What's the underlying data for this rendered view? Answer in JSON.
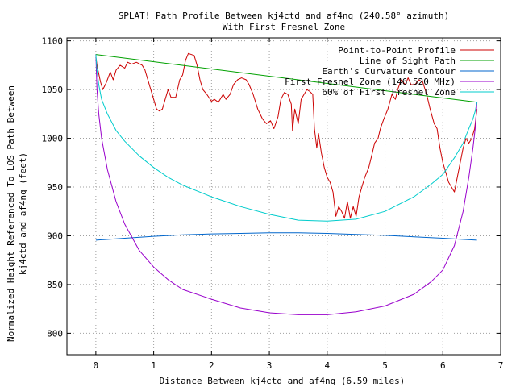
{
  "chart_data": {
    "type": "line",
    "title": "SPLAT! Path Profile Between kj4ctd and af4nq (240.58° azimuth)",
    "subtitle": "With First Fresnel Zone",
    "xlabel": "Distance Between kj4ctd and af4nq (6.59 miles)",
    "ylabel_line1": "Normalized Height Referenced To LOS Path Between",
    "ylabel_line2": "kj4ctd and af4nq (feet)",
    "xlim": [
      -0.5,
      7
    ],
    "ylim": [
      778,
      1103
    ],
    "x_ticks": [
      0,
      1,
      2,
      3,
      4,
      5,
      6,
      7
    ],
    "y_ticks": [
      800,
      850,
      900,
      950,
      1000,
      1050,
      1100
    ],
    "grid": true,
    "legend_position": "top-right",
    "series": [
      {
        "name": "Point-to-Point Profile",
        "color": "#cc0000",
        "points": [
          [
            0,
            1083
          ],
          [
            0.03,
            1072
          ],
          [
            0.08,
            1058
          ],
          [
            0.12,
            1050
          ],
          [
            0.18,
            1057
          ],
          [
            0.25,
            1068
          ],
          [
            0.3,
            1060
          ],
          [
            0.35,
            1070
          ],
          [
            0.42,
            1075
          ],
          [
            0.5,
            1072
          ],
          [
            0.55,
            1078
          ],
          [
            0.62,
            1076
          ],
          [
            0.7,
            1078
          ],
          [
            0.8,
            1075
          ],
          [
            0.85,
            1070
          ],
          [
            0.9,
            1060
          ],
          [
            0.95,
            1050
          ],
          [
            1.0,
            1040
          ],
          [
            1.05,
            1030
          ],
          [
            1.1,
            1028
          ],
          [
            1.15,
            1030
          ],
          [
            1.2,
            1040
          ],
          [
            1.25,
            1050
          ],
          [
            1.3,
            1042
          ],
          [
            1.38,
            1042
          ],
          [
            1.45,
            1060
          ],
          [
            1.5,
            1065
          ],
          [
            1.55,
            1080
          ],
          [
            1.6,
            1087
          ],
          [
            1.7,
            1085
          ],
          [
            1.75,
            1075
          ],
          [
            1.8,
            1060
          ],
          [
            1.85,
            1050
          ],
          [
            1.92,
            1045
          ],
          [
            2.0,
            1038
          ],
          [
            2.05,
            1040
          ],
          [
            2.12,
            1037
          ],
          [
            2.2,
            1045
          ],
          [
            2.25,
            1040
          ],
          [
            2.32,
            1045
          ],
          [
            2.38,
            1055
          ],
          [
            2.45,
            1060
          ],
          [
            2.52,
            1062
          ],
          [
            2.6,
            1060
          ],
          [
            2.65,
            1055
          ],
          [
            2.72,
            1045
          ],
          [
            2.8,
            1030
          ],
          [
            2.88,
            1020
          ],
          [
            2.95,
            1015
          ],
          [
            3.02,
            1018
          ],
          [
            3.08,
            1010
          ],
          [
            3.15,
            1022
          ],
          [
            3.2,
            1040
          ],
          [
            3.26,
            1047
          ],
          [
            3.32,
            1045
          ],
          [
            3.38,
            1035
          ],
          [
            3.4,
            1008
          ],
          [
            3.44,
            1030
          ],
          [
            3.5,
            1015
          ],
          [
            3.55,
            1040
          ],
          [
            3.6,
            1045
          ],
          [
            3.65,
            1050
          ],
          [
            3.7,
            1048
          ],
          [
            3.75,
            1045
          ],
          [
            3.78,
            1010
          ],
          [
            3.82,
            990
          ],
          [
            3.85,
            1005
          ],
          [
            3.9,
            985
          ],
          [
            3.95,
            970
          ],
          [
            4.0,
            960
          ],
          [
            4.05,
            955
          ],
          [
            4.1,
            945
          ],
          [
            4.15,
            920
          ],
          [
            4.2,
            930
          ],
          [
            4.25,
            925
          ],
          [
            4.3,
            918
          ],
          [
            4.35,
            935
          ],
          [
            4.4,
            918
          ],
          [
            4.45,
            930
          ],
          [
            4.5,
            920
          ],
          [
            4.55,
            940
          ],
          [
            4.6,
            950
          ],
          [
            4.65,
            960
          ],
          [
            4.72,
            970
          ],
          [
            4.78,
            985
          ],
          [
            4.82,
            995
          ],
          [
            4.88,
            1000
          ],
          [
            4.92,
            1010
          ],
          [
            4.98,
            1020
          ],
          [
            5.05,
            1030
          ],
          [
            5.12,
            1045
          ],
          [
            5.18,
            1040
          ],
          [
            5.22,
            1050
          ],
          [
            5.28,
            1060
          ],
          [
            5.35,
            1055
          ],
          [
            5.4,
            1062
          ],
          [
            5.45,
            1055
          ],
          [
            5.52,
            1055
          ],
          [
            5.58,
            1060
          ],
          [
            5.65,
            1058
          ],
          [
            5.72,
            1045
          ],
          [
            5.78,
            1030
          ],
          [
            5.85,
            1015
          ],
          [
            5.9,
            1010
          ],
          [
            5.95,
            990
          ],
          [
            6.0,
            975
          ],
          [
            6.05,
            965
          ],
          [
            6.1,
            955
          ],
          [
            6.15,
            950
          ],
          [
            6.2,
            945
          ],
          [
            6.25,
            960
          ],
          [
            6.3,
            975
          ],
          [
            6.35,
            990
          ],
          [
            6.4,
            1000
          ],
          [
            6.45,
            995
          ],
          [
            6.5,
            1000
          ],
          [
            6.55,
            1010
          ],
          [
            6.59,
            1030
          ]
        ]
      },
      {
        "name": "Line of Sight Path",
        "color": "#00a000",
        "points": [
          [
            0,
            1086
          ],
          [
            6.59,
            1037
          ]
        ]
      },
      {
        "name": "Earth's Curvature Contour",
        "color": "#0066cc",
        "points": [
          [
            0,
            895.5
          ],
          [
            0.5,
            897.5
          ],
          [
            1.0,
            899.5
          ],
          [
            1.5,
            901
          ],
          [
            2.0,
            902
          ],
          [
            2.5,
            902.5
          ],
          [
            3.0,
            903
          ],
          [
            3.5,
            903
          ],
          [
            4.0,
            902.5
          ],
          [
            4.5,
            901.5
          ],
          [
            5.0,
            900.5
          ],
          [
            5.5,
            899
          ],
          [
            6.0,
            897.5
          ],
          [
            6.59,
            895.5
          ]
        ]
      },
      {
        "name": "First Fresnel Zone (146.520 MHz)",
        "color": "#9900cc",
        "points": [
          [
            0,
            1086
          ],
          [
            0.02,
            1050
          ],
          [
            0.05,
            1025
          ],
          [
            0.1,
            1000
          ],
          [
            0.2,
            968
          ],
          [
            0.35,
            935
          ],
          [
            0.5,
            912
          ],
          [
            0.75,
            885
          ],
          [
            1.0,
            868
          ],
          [
            1.25,
            855
          ],
          [
            1.5,
            845
          ],
          [
            2.0,
            835
          ],
          [
            2.5,
            826
          ],
          [
            3.0,
            821
          ],
          [
            3.5,
            819
          ],
          [
            4.0,
            819
          ],
          [
            4.5,
            822
          ],
          [
            5.0,
            828
          ],
          [
            5.5,
            840
          ],
          [
            5.8,
            853
          ],
          [
            6.0,
            865
          ],
          [
            6.2,
            890
          ],
          [
            6.35,
            925
          ],
          [
            6.45,
            960
          ],
          [
            6.52,
            990
          ],
          [
            6.56,
            1010
          ],
          [
            6.59,
            1037
          ]
        ]
      },
      {
        "name": "60% of First Fresnel Zone",
        "color": "#00cccc",
        "points": [
          [
            0,
            1086
          ],
          [
            0.02,
            1070
          ],
          [
            0.05,
            1055
          ],
          [
            0.1,
            1040
          ],
          [
            0.2,
            1025
          ],
          [
            0.35,
            1008
          ],
          [
            0.5,
            997
          ],
          [
            0.75,
            982
          ],
          [
            1.0,
            970
          ],
          [
            1.25,
            960
          ],
          [
            1.5,
            952
          ],
          [
            2.0,
            940
          ],
          [
            2.5,
            930
          ],
          [
            3.0,
            922
          ],
          [
            3.5,
            916
          ],
          [
            4.0,
            915
          ],
          [
            4.5,
            917
          ],
          [
            5.0,
            925
          ],
          [
            5.5,
            940
          ],
          [
            5.8,
            953
          ],
          [
            6.0,
            963
          ],
          [
            6.2,
            980
          ],
          [
            6.35,
            995
          ],
          [
            6.45,
            1010
          ],
          [
            6.52,
            1020
          ],
          [
            6.56,
            1028
          ],
          [
            6.59,
            1037
          ]
        ]
      }
    ]
  }
}
